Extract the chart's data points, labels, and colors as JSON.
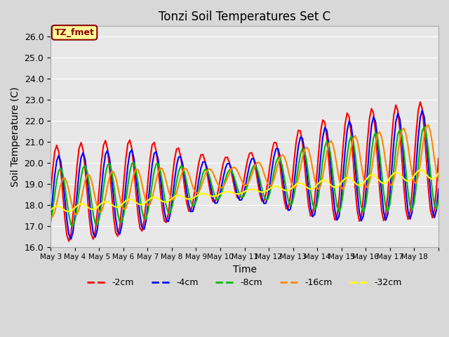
{
  "title": "Tonzi Soil Temperatures Set C",
  "xlabel": "Time",
  "ylabel": "Soil Temperature (C)",
  "ylim": [
    16.0,
    26.5
  ],
  "yticks": [
    16.0,
    17.0,
    18.0,
    19.0,
    20.0,
    21.0,
    22.0,
    23.0,
    24.0,
    25.0,
    26.0
  ],
  "bg_color": "#e8e8e8",
  "plot_bg_color": "#e8e8e8",
  "annotation_text": "TZ_fmet",
  "annotation_bg": "#ffff99",
  "annotation_border": "#8b0000",
  "series": {
    "neg2cm": {
      "label": "-2cm",
      "color": "#ff0000",
      "linewidth": 1.5
    },
    "neg4cm": {
      "label": "-4cm",
      "color": "#0000ff",
      "linewidth": 1.5
    },
    "neg8cm": {
      "label": "-8cm",
      "color": "#00bb00",
      "linewidth": 1.5
    },
    "neg16cm": {
      "label": "-16cm",
      "color": "#ff8800",
      "linewidth": 1.5
    },
    "neg32cm": {
      "label": "-32cm",
      "color": "#ffff00",
      "linewidth": 1.5
    }
  },
  "xtick_labels": [
    "May 3",
    "May 4",
    "May 5",
    "May 6",
    "May 7",
    "May 8",
    "May 9",
    "May 10",
    "May 11",
    "May 12",
    "May 13",
    "May 14",
    "May 15",
    "May 16",
    "May 17",
    "May 18"
  ],
  "n_days": 16
}
